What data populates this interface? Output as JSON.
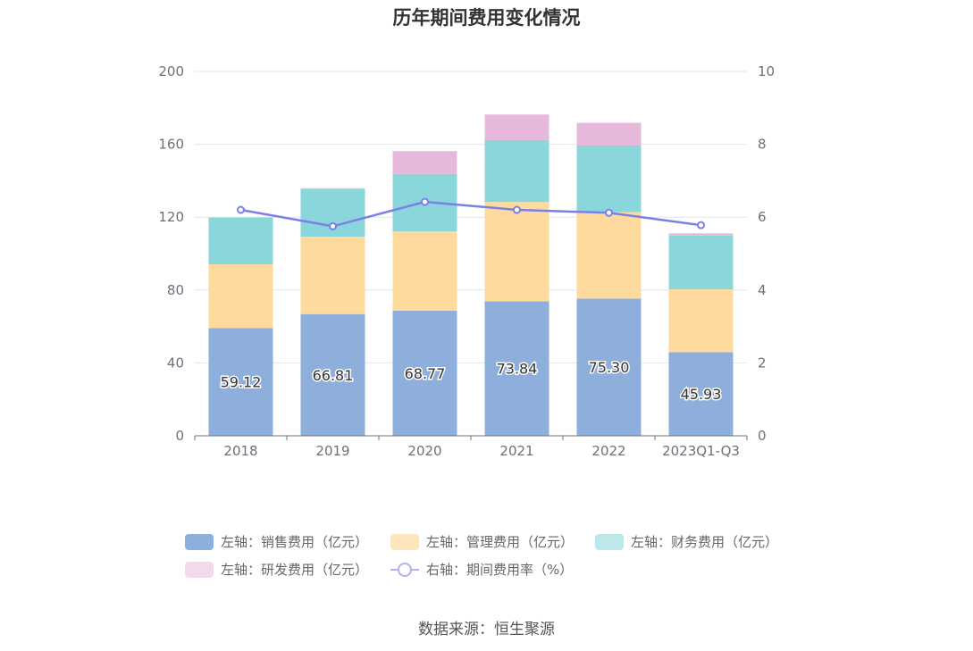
{
  "title": "历年期间费用变化情况",
  "source": "数据来源：恒生聚源",
  "chart_data": {
    "type": "bar",
    "stacked": true,
    "categories": [
      "2018",
      "2019",
      "2020",
      "2021",
      "2022",
      "2023Q1-Q3"
    ],
    "left_axis": {
      "ylim": [
        0,
        200
      ],
      "ticks": [
        "0",
        "40",
        "80",
        "120",
        "160",
        "200"
      ]
    },
    "right_axis": {
      "ylim": [
        0,
        10
      ],
      "ticks": [
        "0",
        "2",
        "4",
        "6",
        "8",
        "10"
      ]
    },
    "series": [
      {
        "name": "左轴：销售费用（亿元）",
        "axis": "left",
        "type": "bar",
        "color": "#8eaedb",
        "values": [
          59.12,
          66.81,
          68.77,
          73.84,
          75.3,
          45.93
        ],
        "labels": [
          "59.12",
          "66.81",
          "68.77",
          "73.84",
          "75.30",
          "45.93"
        ]
      },
      {
        "name": "左轴：管理费用（亿元）",
        "axis": "left",
        "type": "bar",
        "color": "#fedb9c",
        "values": [
          35.0,
          42.5,
          43.5,
          54.5,
          47.5,
          34.5
        ]
      },
      {
        "name": "左轴：财务费用（亿元）",
        "axis": "left",
        "type": "bar",
        "color": "#89d6db",
        "values": [
          25.5,
          26.0,
          31.5,
          34.0,
          36.5,
          29.5
        ]
      },
      {
        "name": "左轴：研发费用（亿元）",
        "axis": "left",
        "type": "bar",
        "color": "#e6b9db",
        "values": [
          0.3,
          0.6,
          12.5,
          14.0,
          12.5,
          1.2
        ]
      },
      {
        "name": "右轴：期间费用率（%）",
        "axis": "right",
        "type": "line",
        "color": "#7b7fe6",
        "values": [
          6.2,
          5.75,
          6.42,
          6.2,
          6.12,
          5.78
        ]
      }
    ],
    "legend_position": "bottom",
    "grid": true
  },
  "legend": {
    "items": [
      {
        "label": "左轴：销售费用（亿元）",
        "color": "#8eaedb",
        "kind": "box"
      },
      {
        "label": "左轴：管理费用（亿元）",
        "color": "#fde6bd",
        "kind": "box"
      },
      {
        "label": "左轴：财务费用（亿元）",
        "color": "#bde8ea",
        "kind": "box"
      },
      {
        "label": "左轴：研发费用（亿元）",
        "color": "#f2d9ec",
        "kind": "box"
      },
      {
        "label": "右轴：期间费用率（%）",
        "color": "#aeb4ee",
        "kind": "line"
      }
    ]
  }
}
